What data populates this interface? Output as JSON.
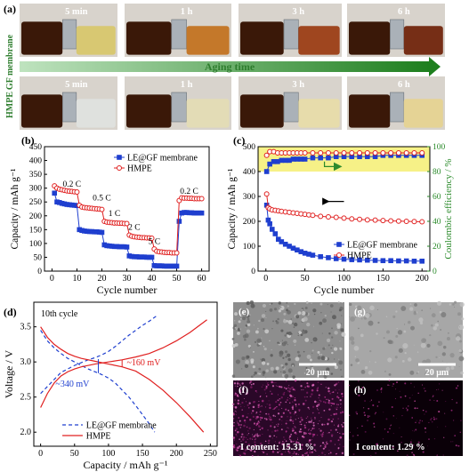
{
  "panel_letters": {
    "a": "(a)",
    "b": "(b)",
    "c": "(c)",
    "d": "(d)",
    "e": "(e)",
    "f": "(f)",
    "g": "(g)",
    "h": "(h)"
  },
  "photos": {
    "row_labels": [
      "GF membrane",
      "HMPE"
    ],
    "arrow_label": "Aging time",
    "top_times": [
      "5 min",
      "1 h",
      "3 h",
      "6 h"
    ],
    "bottom_times": [
      "5 min",
      "1 h",
      "3 h",
      "6 h"
    ],
    "top_right_vial_colors": [
      "#d8c76a",
      "#c2701c",
      "#9a3a10",
      "#6e1f06"
    ],
    "bottom_right_vial_colors": [
      "#e0e2e0",
      "#e4dcb4",
      "#e8dca8",
      "#e6d290"
    ]
  },
  "sem": {
    "scale_bar_e": "20 μm",
    "scale_bar_g": "20 μm",
    "content_f": "I content: 15.31 %",
    "content_h": "I content: 1.29 %"
  },
  "chart_data": [
    {
      "id": "b",
      "type": "line",
      "xlabel": "Cycle number",
      "ylabel": "Capacity / mAh g⁻¹",
      "xlim": [
        -3,
        63
      ],
      "ylim": [
        0,
        450
      ],
      "xticks": [
        0,
        10,
        20,
        30,
        40,
        50,
        60
      ],
      "yticks": [
        0,
        50,
        100,
        150,
        200,
        250,
        300,
        350,
        400,
        450
      ],
      "legend": "top-right",
      "annotations": [
        "0.2 C",
        "0.5 C",
        "1 C",
        "2 C",
        "5 C",
        "0.2 C"
      ],
      "series": [
        {
          "name": "LE@GF membrane",
          "color": "#1f3fcf",
          "marker": "square",
          "x": [
            1,
            2,
            3,
            4,
            5,
            6,
            7,
            8,
            9,
            10,
            11,
            12,
            13,
            14,
            15,
            16,
            17,
            18,
            19,
            20,
            21,
            22,
            23,
            24,
            25,
            26,
            27,
            28,
            29,
            30,
            31,
            32,
            33,
            34,
            35,
            36,
            37,
            38,
            39,
            40,
            41,
            42,
            43,
            44,
            45,
            46,
            47,
            48,
            49,
            50,
            51,
            52,
            53,
            54,
            55,
            56,
            57,
            58,
            59,
            60
          ],
          "y": [
            282,
            250,
            248,
            245,
            243,
            241,
            240,
            239,
            238,
            237,
            150,
            147,
            145,
            144,
            143,
            143,
            142,
            142,
            141,
            140,
            95,
            92,
            91,
            90,
            89,
            89,
            88,
            88,
            88,
            87,
            55,
            53,
            52,
            52,
            51,
            51,
            51,
            50,
            50,
            50,
            20,
            19,
            19,
            19,
            18,
            18,
            18,
            18,
            18,
            18,
            180,
            210,
            212,
            212,
            211,
            211,
            210,
            210,
            210,
            210
          ]
        },
        {
          "name": "HMPE",
          "color": "#e02020",
          "marker": "circle",
          "x": [
            1,
            2,
            3,
            4,
            5,
            6,
            7,
            8,
            9,
            10,
            11,
            12,
            13,
            14,
            15,
            16,
            17,
            18,
            19,
            20,
            21,
            22,
            23,
            24,
            25,
            26,
            27,
            28,
            29,
            30,
            31,
            32,
            33,
            34,
            35,
            36,
            37,
            38,
            39,
            40,
            41,
            42,
            43,
            44,
            45,
            46,
            47,
            48,
            49,
            50,
            51,
            52,
            53,
            54,
            55,
            56,
            57,
            58,
            59,
            60
          ],
          "y": [
            308,
            300,
            296,
            294,
            292,
            290,
            289,
            288,
            287,
            286,
            238,
            232,
            230,
            229,
            228,
            227,
            226,
            225,
            224,
            223,
            180,
            177,
            176,
            175,
            174,
            174,
            173,
            173,
            172,
            172,
            130,
            126,
            124,
            123,
            122,
            121,
            121,
            120,
            120,
            119,
            80,
            72,
            70,
            69,
            68,
            67,
            67,
            66,
            66,
            66,
            255,
            265,
            264,
            264,
            263,
            263,
            262,
            262,
            262,
            262
          ]
        }
      ]
    },
    {
      "id": "c",
      "type": "scatter",
      "xlabel": "Cycle number",
      "ylabel": "Capacity / mAh g⁻¹",
      "y2label": "Coulombic efficiency / %",
      "xlim": [
        -10,
        210
      ],
      "ylim": [
        0,
        500
      ],
      "y2lim": [
        0,
        100
      ],
      "xticks": [
        0,
        50,
        100,
        150,
        200
      ],
      "yticks": [
        0,
        100,
        200,
        300,
        400,
        500
      ],
      "y2ticks": [
        0,
        20,
        40,
        60,
        80,
        100
      ],
      "legend": "bottom-right",
      "shaded_band_y2": [
        80,
        100
      ],
      "capacity_series": [
        {
          "name": "LE@GF membrane",
          "color": "#1f3fcf",
          "marker": "square",
          "x": [
            1,
            3,
            5,
            8,
            12,
            16,
            20,
            25,
            30,
            35,
            40,
            45,
            50,
            55,
            60,
            70,
            80,
            90,
            100,
            110,
            120,
            130,
            140,
            150,
            160,
            170,
            180,
            190,
            200
          ],
          "y": [
            265,
            205,
            190,
            168,
            150,
            128,
            118,
            108,
            100,
            92,
            85,
            78,
            72,
            68,
            64,
            58,
            54,
            50,
            48,
            46,
            45,
            44,
            43,
            42,
            42,
            41,
            41,
            40,
            40
          ]
        },
        {
          "name": "HMPE",
          "color": "#e02020",
          "marker": "circle",
          "x": [
            1,
            3,
            5,
            8,
            12,
            16,
            20,
            25,
            30,
            35,
            40,
            45,
            50,
            55,
            60,
            70,
            80,
            90,
            100,
            110,
            120,
            130,
            140,
            150,
            160,
            170,
            180,
            190,
            200
          ],
          "y": [
            310,
            255,
            250,
            246,
            244,
            242,
            240,
            238,
            236,
            234,
            232,
            230,
            228,
            226,
            224,
            220,
            218,
            216,
            213,
            210,
            208,
            206,
            205,
            203,
            202,
            201,
            200,
            199,
            198
          ]
        }
      ],
      "ce_series": [
        {
          "name": "LE@GF membrane CE",
          "color": "#1f3fcf",
          "marker": "square",
          "x": [
            1,
            5,
            10,
            15,
            20,
            25,
            30,
            35,
            40,
            45,
            50,
            60,
            70,
            80,
            90,
            100,
            110,
            120,
            130,
            140,
            150,
            160,
            170,
            180,
            190,
            200
          ],
          "y": [
            80,
            86,
            88,
            88,
            89,
            89,
            89,
            90,
            90,
            90,
            90,
            91,
            91,
            91,
            92,
            92,
            92,
            92,
            92,
            92,
            93,
            93,
            93,
            93,
            93,
            93
          ]
        },
        {
          "name": "HMPE CE",
          "color": "#e02020",
          "marker": "circle",
          "x": [
            1,
            5,
            10,
            15,
            20,
            25,
            30,
            35,
            40,
            45,
            50,
            60,
            70,
            80,
            90,
            100,
            110,
            120,
            130,
            140,
            150,
            160,
            170,
            180,
            190,
            200
          ],
          "y": [
            93,
            96,
            96,
            95,
            95,
            95,
            95,
            95,
            95,
            95,
            95,
            95,
            95,
            95,
            95,
            95,
            95,
            95,
            95,
            95,
            95,
            95,
            95,
            95,
            95,
            95
          ]
        }
      ]
    },
    {
      "id": "d",
      "type": "line",
      "xlabel": "Capacity / mAh g⁻¹",
      "ylabel": "Voltage / V",
      "xlim": [
        -10,
        260
      ],
      "ylim": [
        1.8,
        3.85
      ],
      "xticks": [
        0,
        50,
        100,
        150,
        200,
        250
      ],
      "yticks": [
        2.0,
        2.5,
        3.0,
        3.5
      ],
      "legend": "bottom-right",
      "annotation_cycle": "10th cycle",
      "annotations": [
        "~160 mV",
        "~340 mV"
      ],
      "series": [
        {
          "name": "LE@GF membrane",
          "color": "#1f3fcf",
          "dash": "dashed",
          "discharge": {
            "x": [
              0,
              10,
              20,
              30,
              40,
              50,
              60,
              70,
              80,
              90,
              100,
              110,
              120,
              130,
              140,
              150,
              160,
              168
            ],
            "y": [
              3.45,
              3.3,
              3.2,
              3.12,
              3.05,
              3.0,
              2.95,
              2.9,
              2.86,
              2.82,
              2.77,
              2.7,
              2.6,
              2.5,
              2.38,
              2.25,
              2.12,
              2.0
            ]
          },
          "charge": {
            "x": [
              0,
              10,
              20,
              30,
              40,
              50,
              60,
              70,
              80,
              90,
              100,
              110,
              120,
              130,
              140,
              150,
              160,
              170
            ],
            "y": [
              2.55,
              2.65,
              2.75,
              2.85,
              2.9,
              2.95,
              2.99,
              3.03,
              3.06,
              3.1,
              3.15,
              3.22,
              3.3,
              3.38,
              3.45,
              3.52,
              3.58,
              3.65
            ]
          }
        },
        {
          "name": "HMPE",
          "color": "#e02020",
          "dash": "solid",
          "discharge": {
            "x": [
              0,
              10,
              20,
              30,
              40,
              50,
              60,
              80,
              100,
              120,
              140,
              160,
              180,
              200,
              220,
              240
            ],
            "y": [
              3.5,
              3.35,
              3.25,
              3.18,
              3.12,
              3.08,
              3.05,
              3.01,
              2.97,
              2.93,
              2.87,
              2.75,
              2.6,
              2.42,
              2.22,
              2.0
            ]
          },
          "charge": {
            "x": [
              0,
              10,
              20,
              30,
              40,
              50,
              60,
              80,
              100,
              120,
              140,
              160,
              180,
              200,
              220,
              245
            ],
            "y": [
              2.35,
              2.55,
              2.7,
              2.8,
              2.86,
              2.9,
              2.93,
              2.97,
              3.0,
              3.03,
              3.07,
              3.12,
              3.2,
              3.3,
              3.42,
              3.6
            ]
          }
        }
      ]
    }
  ]
}
